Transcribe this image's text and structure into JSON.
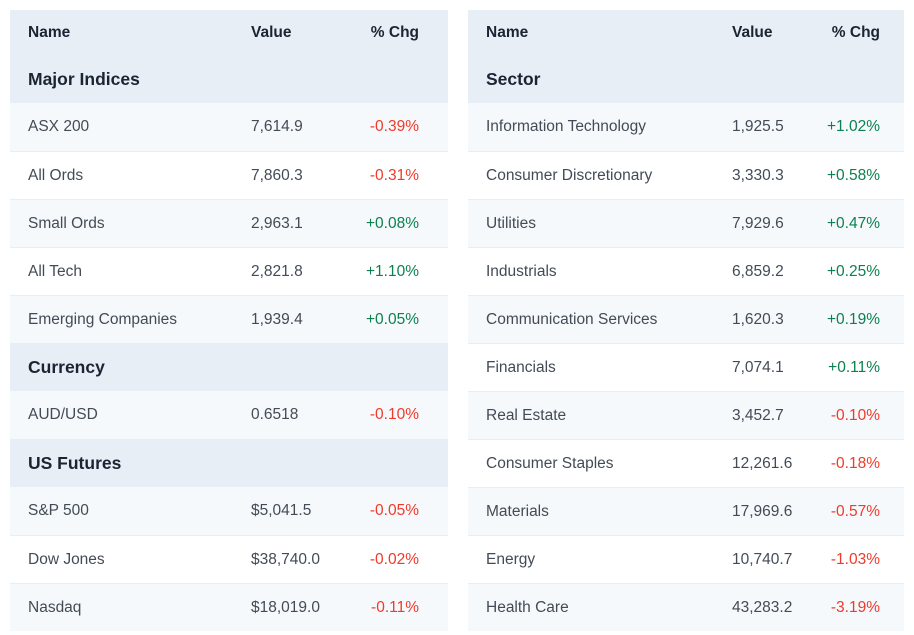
{
  "palette": {
    "positive": "#0c8050",
    "negative": "#f03a2b",
    "header_bg": "#e8eef6",
    "row_alt_bg": "#f5f9fc",
    "row_bg": "#ffffff",
    "header_text": "#1b2433",
    "body_text": "#434b56",
    "divider": "#e9eef4"
  },
  "tables": [
    {
      "name": "market-summary",
      "columns": {
        "name": "Name",
        "value": "Value",
        "pct": "% Chg"
      },
      "sections": [
        {
          "title": "Major Indices",
          "rows": [
            {
              "name": "ASX 200",
              "value": "7,614.9",
              "pct": "-0.39%",
              "direction": "down"
            },
            {
              "name": "All Ords",
              "value": "7,860.3",
              "pct": "-0.31%",
              "direction": "down"
            },
            {
              "name": "Small Ords",
              "value": "2,963.1",
              "pct": "+0.08%",
              "direction": "up"
            },
            {
              "name": "All Tech",
              "value": "2,821.8",
              "pct": "+1.10%",
              "direction": "up"
            },
            {
              "name": "Emerging Companies",
              "value": "1,939.4",
              "pct": "+0.05%",
              "direction": "up"
            }
          ]
        },
        {
          "title": "Currency",
          "rows": [
            {
              "name": "AUD/USD",
              "value": "0.6518",
              "pct": "-0.10%",
              "direction": "down"
            }
          ]
        },
        {
          "title": "US Futures",
          "rows": [
            {
              "name": "S&P 500",
              "value": "$5,041.5",
              "pct": "-0.05%",
              "direction": "down"
            },
            {
              "name": "Dow Jones",
              "value": "$38,740.0",
              "pct": "-0.02%",
              "direction": "down"
            },
            {
              "name": "Nasdaq",
              "value": "$18,019.0",
              "pct": "-0.11%",
              "direction": "down"
            }
          ]
        }
      ]
    },
    {
      "name": "sector-summary",
      "columns": {
        "name": "Name",
        "value": "Value",
        "pct": "% Chg"
      },
      "sections": [
        {
          "title": "Sector",
          "rows": [
            {
              "name": "Information Technology",
              "value": "1,925.5",
              "pct": "+1.02%",
              "direction": "up"
            },
            {
              "name": "Consumer Discretionary",
              "value": "3,330.3",
              "pct": "+0.58%",
              "direction": "up"
            },
            {
              "name": "Utilities",
              "value": "7,929.6",
              "pct": "+0.47%",
              "direction": "up"
            },
            {
              "name": "Industrials",
              "value": "6,859.2",
              "pct": "+0.25%",
              "direction": "up"
            },
            {
              "name": "Communication Services",
              "value": "1,620.3",
              "pct": "+0.19%",
              "direction": "up"
            },
            {
              "name": "Financials",
              "value": "7,074.1",
              "pct": "+0.11%",
              "direction": "up"
            },
            {
              "name": "Real Estate",
              "value": "3,452.7",
              "pct": "-0.10%",
              "direction": "down"
            },
            {
              "name": "Consumer Staples",
              "value": "12,261.6",
              "pct": "-0.18%",
              "direction": "down"
            },
            {
              "name": "Materials",
              "value": "17,969.6",
              "pct": "-0.57%",
              "direction": "down"
            },
            {
              "name": "Energy",
              "value": "10,740.7",
              "pct": "-1.03%",
              "direction": "down"
            },
            {
              "name": "Health Care",
              "value": "43,283.2",
              "pct": "-3.19%",
              "direction": "down"
            }
          ]
        }
      ]
    }
  ]
}
